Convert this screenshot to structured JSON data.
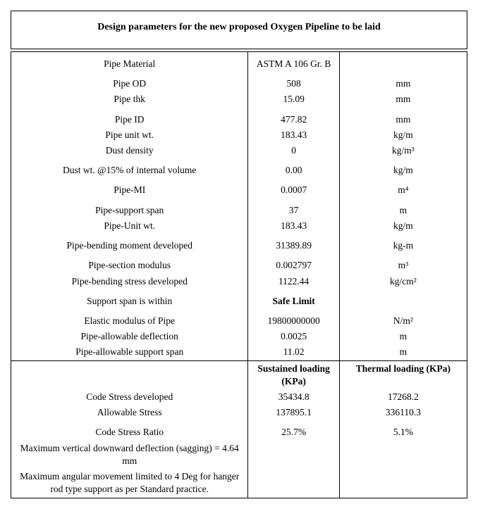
{
  "title": "Design parameters for the new proposed Oxygen Pipeline to be laid",
  "header": {
    "param": "Pipe Material",
    "value": "ASTM A 106 Gr. B",
    "unit": ""
  },
  "rows": [
    {
      "label": "Pipe OD",
      "value": "508",
      "unit": "mm"
    },
    {
      "label": "Pipe thk",
      "value": "15.09",
      "unit": "mm"
    },
    {
      "label": "Pipe ID",
      "value": "477.82",
      "unit": "mm"
    },
    {
      "label": "Pipe unit wt.",
      "value": "183.43",
      "unit": "kg/m"
    },
    {
      "label": "Dust density",
      "value": "0",
      "unit": "kg/m³"
    },
    {
      "label": "Dust wt. @15% of internal volume",
      "value": "0.00",
      "unit": "kg/m"
    },
    {
      "label": "Pipe-MI",
      "value": "0.0007",
      "unit": "m⁴"
    },
    {
      "label": "Pipe-support span",
      "value": "37",
      "unit": "m"
    },
    {
      "label": "Pipe-Unit wt.",
      "value": "183.43",
      "unit": "kg/m"
    },
    {
      "label": "Pipe-bending moment developed",
      "value": "31389.89",
      "unit": "kg-m"
    },
    {
      "label": "Pipe-section modulus",
      "value": "0.002797",
      "unit": "m³"
    },
    {
      "label": "Pipe-bending stress developed",
      "value": "1122.44",
      "unit": "kg/cm²"
    },
    {
      "label": "Support span is within",
      "value": "Safe Limit",
      "unit": "",
      "bold": true
    },
    {
      "label": "Elastic modulus of Pipe",
      "value": "19800000000",
      "unit": "N/m²"
    },
    {
      "label": "Pipe-allowable deflection",
      "value": "0.0025",
      "unit": "m"
    },
    {
      "label": "Pipe-allowable support span",
      "value": "11.02",
      "unit": "m"
    }
  ],
  "sub_header": {
    "c2": "Sustained loading (KPa)",
    "c3": "Thermal loading (KPa)"
  },
  "rows2": [
    {
      "label": "Code Stress developed",
      "value": "35434.8",
      "unit": "17268.2"
    },
    {
      "label": "Allowable Stress",
      "value": "137895.1",
      "unit": "336110.3"
    },
    {
      "label": "Code Stress Ratio",
      "value": "25.7%",
      "unit": "5.1%"
    }
  ],
  "notes": [
    "Maximum vertical downward deflection (sagging) = 4.64 mm",
    "Maximum angular movement limited to 4 Deg for hanger rod type support as per Standard practice."
  ]
}
